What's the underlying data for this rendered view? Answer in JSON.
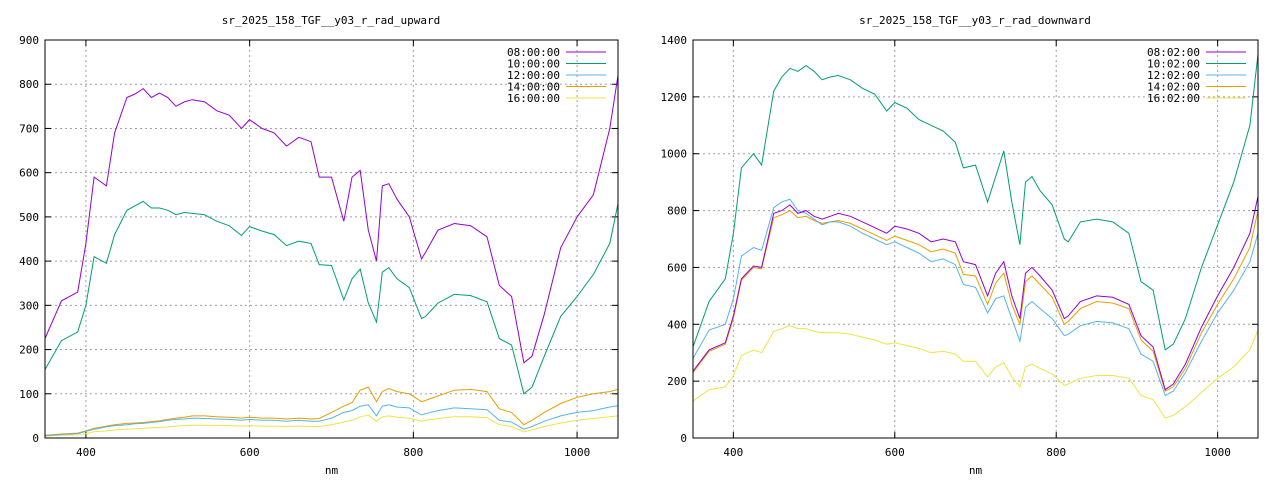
{
  "chart_data": [
    {
      "type": "line",
      "title": "sr_2025_158_TGF__y03_r_rad_upward",
      "xlabel": "nm",
      "ylabel": "",
      "xlim": [
        350,
        1050
      ],
      "ylim": [
        0,
        900
      ],
      "xticks": [
        400,
        600,
        800,
        1000
      ],
      "yticks": [
        0,
        100,
        200,
        300,
        400,
        500,
        600,
        700,
        800,
        900
      ],
      "grid": true,
      "legend_position": "top-right",
      "x": [
        350,
        370,
        390,
        400,
        410,
        425,
        435,
        450,
        460,
        470,
        480,
        490,
        500,
        510,
        520,
        530,
        545,
        560,
        575,
        590,
        600,
        615,
        630,
        645,
        660,
        675,
        685,
        700,
        715,
        725,
        735,
        745,
        755,
        762,
        770,
        780,
        795,
        810,
        815,
        830,
        850,
        870,
        890,
        905,
        920,
        935,
        945,
        960,
        980,
        1000,
        1020,
        1040,
        1050
      ],
      "series": [
        {
          "name": "08:00:00",
          "color": "#9400d3",
          "values": [
            225,
            310,
            330,
            440,
            590,
            570,
            690,
            770,
            778,
            790,
            770,
            780,
            770,
            750,
            760,
            765,
            760,
            740,
            730,
            700,
            720,
            700,
            690,
            660,
            680,
            670,
            590,
            590,
            490,
            590,
            605,
            470,
            400,
            570,
            575,
            540,
            500,
            405,
            420,
            470,
            485,
            480,
            455,
            345,
            320,
            170,
            185,
            280,
            430,
            500,
            550,
            700,
            820
          ]
        },
        {
          "name": "10:00:00",
          "color": "#009e73",
          "values": [
            155,
            220,
            240,
            300,
            410,
            395,
            460,
            515,
            525,
            535,
            520,
            520,
            515,
            505,
            510,
            508,
            505,
            490,
            480,
            458,
            478,
            468,
            460,
            435,
            445,
            440,
            392,
            390,
            312,
            360,
            382,
            305,
            262,
            375,
            385,
            360,
            340,
            270,
            275,
            305,
            325,
            322,
            308,
            225,
            210,
            100,
            115,
            185,
            275,
            320,
            370,
            440,
            530
          ]
        },
        {
          "name": "12:00:00",
          "color": "#56b4e9",
          "values": [
            5,
            8,
            10,
            15,
            20,
            25,
            28,
            30,
            32,
            33,
            35,
            37,
            40,
            42,
            43,
            45,
            44,
            43,
            42,
            40,
            42,
            40,
            40,
            38,
            40,
            38,
            38,
            45,
            58,
            62,
            72,
            75,
            50,
            72,
            75,
            70,
            68,
            52,
            55,
            62,
            68,
            66,
            64,
            40,
            36,
            20,
            26,
            38,
            50,
            58,
            62,
            70,
            73
          ]
        },
        {
          "name": "14:00:00",
          "color": "#e69f00",
          "values": [
            6,
            9,
            11,
            16,
            22,
            27,
            30,
            33,
            34,
            35,
            37,
            39,
            42,
            45,
            47,
            50,
            50,
            48,
            47,
            45,
            47,
            45,
            45,
            43,
            45,
            43,
            44,
            58,
            72,
            80,
            108,
            115,
            82,
            105,
            112,
            105,
            100,
            82,
            85,
            95,
            108,
            110,
            105,
            66,
            58,
            30,
            40,
            58,
            78,
            92,
            100,
            105,
            110
          ]
        },
        {
          "name": "16:00:00",
          "color": "#f0e442",
          "values": [
            4,
            6,
            7,
            10,
            14,
            16,
            18,
            20,
            21,
            22,
            23,
            24,
            25,
            27,
            28,
            29,
            29,
            28,
            28,
            27,
            28,
            27,
            27,
            26,
            27,
            26,
            26,
            30,
            36,
            40,
            48,
            52,
            38,
            48,
            50,
            47,
            45,
            38,
            40,
            44,
            48,
            48,
            46,
            30,
            26,
            14,
            18,
            26,
            34,
            40,
            44,
            48,
            50
          ]
        }
      ]
    },
    {
      "type": "line",
      "title": "sr_2025_158_TGF__y03_r_rad_downward",
      "xlabel": "nm",
      "ylabel": "",
      "xlim": [
        350,
        1050
      ],
      "ylim": [
        0,
        1400
      ],
      "xticks": [
        400,
        600,
        800,
        1000
      ],
      "yticks": [
        0,
        200,
        400,
        600,
        800,
        1000,
        1200,
        1400
      ],
      "grid": true,
      "legend_position": "top-right",
      "x": [
        350,
        370,
        390,
        400,
        410,
        425,
        435,
        450,
        460,
        470,
        480,
        490,
        500,
        510,
        520,
        530,
        545,
        560,
        575,
        590,
        600,
        615,
        630,
        645,
        660,
        675,
        685,
        700,
        715,
        725,
        735,
        745,
        755,
        762,
        770,
        780,
        795,
        810,
        815,
        830,
        850,
        870,
        890,
        905,
        920,
        935,
        945,
        960,
        980,
        1000,
        1020,
        1040,
        1050
      ],
      "series": [
        {
          "name": "08:02:00",
          "color": "#9400d3",
          "values": [
            235,
            310,
            335,
            430,
            560,
            605,
            600,
            790,
            800,
            820,
            790,
            800,
            780,
            770,
            780,
            790,
            780,
            760,
            740,
            720,
            745,
            735,
            720,
            690,
            700,
            690,
            620,
            610,
            500,
            580,
            620,
            500,
            420,
            580,
            600,
            570,
            520,
            420,
            430,
            480,
            500,
            495,
            470,
            360,
            320,
            170,
            190,
            260,
            390,
            500,
            600,
            720,
            850
          ]
        },
        {
          "name": "10:02:00",
          "color": "#009e73",
          "values": [
            320,
            480,
            560,
            720,
            950,
            1000,
            960,
            1220,
            1270,
            1300,
            1290,
            1310,
            1290,
            1260,
            1270,
            1275,
            1260,
            1230,
            1210,
            1150,
            1180,
            1160,
            1120,
            1100,
            1080,
            1040,
            950,
            960,
            830,
            920,
            1010,
            830,
            680,
            900,
            920,
            870,
            820,
            700,
            690,
            760,
            770,
            760,
            720,
            550,
            520,
            310,
            330,
            420,
            600,
            750,
            900,
            1100,
            1350
          ]
        },
        {
          "name": "12:02:00",
          "color": "#56b4e9",
          "values": [
            280,
            380,
            400,
            490,
            640,
            670,
            660,
            810,
            830,
            840,
            800,
            790,
            770,
            750,
            760,
            760,
            745,
            720,
            700,
            680,
            690,
            670,
            650,
            620,
            630,
            610,
            540,
            530,
            440,
            490,
            500,
            420,
            340,
            460,
            480,
            455,
            420,
            360,
            365,
            395,
            410,
            405,
            385,
            295,
            270,
            150,
            165,
            230,
            340,
            440,
            520,
            620,
            720
          ]
        },
        {
          "name": "14:02:00",
          "color": "#e69f00",
          "values": [
            230,
            305,
            330,
            420,
            555,
            600,
            595,
            775,
            785,
            800,
            775,
            780,
            765,
            755,
            760,
            765,
            755,
            735,
            715,
            695,
            710,
            695,
            680,
            655,
            665,
            650,
            575,
            570,
            470,
            545,
            580,
            470,
            400,
            550,
            570,
            540,
            495,
            400,
            410,
            455,
            480,
            475,
            455,
            345,
            305,
            165,
            180,
            245,
            370,
            470,
            560,
            670,
            800
          ]
        },
        {
          "name": "16:02:00",
          "color": "#f0e442",
          "values": [
            130,
            170,
            180,
            220,
            290,
            310,
            300,
            375,
            385,
            395,
            385,
            385,
            375,
            370,
            370,
            370,
            365,
            355,
            345,
            330,
            335,
            325,
            315,
            300,
            305,
            295,
            270,
            270,
            215,
            250,
            265,
            215,
            180,
            250,
            260,
            245,
            225,
            185,
            190,
            210,
            220,
            220,
            210,
            150,
            135,
            70,
            80,
            110,
            160,
            210,
            250,
            310,
            380
          ]
        }
      ]
    }
  ]
}
